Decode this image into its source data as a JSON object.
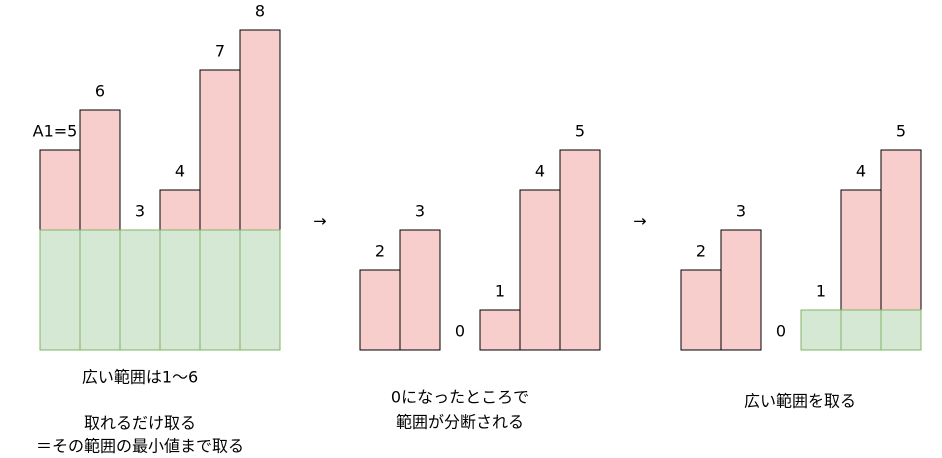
{
  "panels": [
    {
      "values": [
        5,
        6,
        3,
        4,
        7,
        8
      ],
      "value_labels": [
        "A1=5",
        "6",
        "3",
        "4",
        "7",
        "8"
      ],
      "caption": [
        "広い範囲は1～6",
        "取れるだけ取る",
        "＝その範囲の最小値まで取る"
      ]
    },
    {
      "values": [
        2,
        3,
        0,
        1,
        4,
        5
      ],
      "caption": [
        "0になったところで",
        "範囲が分断される"
      ]
    },
    {
      "values": [
        2,
        3,
        0,
        1,
        4,
        5
      ],
      "caption": [
        "広い範囲を取る"
      ]
    }
  ],
  "arrows": [
    "→",
    "→"
  ]
}
